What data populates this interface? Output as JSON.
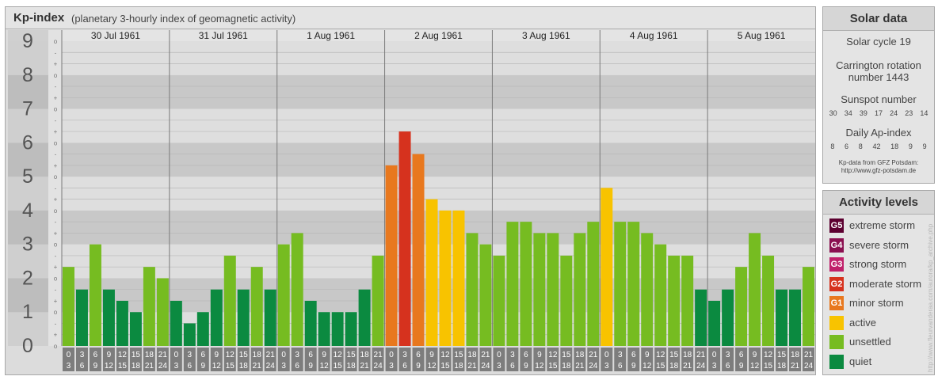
{
  "header": {
    "title": "Kp-index",
    "subtitle": "(planetary 3-hourly index of geomagnetic activity)"
  },
  "chart_data": {
    "type": "bar",
    "title": "Kp-index",
    "subtitle": "(planetary 3-hourly index of geomagnetic activity)",
    "ylim": [
      0,
      9
    ],
    "y_ticks": [
      "0",
      "1",
      "2",
      "3",
      "4",
      "5",
      "6",
      "7",
      "8",
      "9"
    ],
    "y_minor_labels": [
      "o",
      "+",
      "-"
    ],
    "days": [
      "30 Jul 1961",
      "31 Jul 1961",
      "1 Aug 1961",
      "2 Aug 1961",
      "3 Aug 1961",
      "4 Aug 1961",
      "5 Aug 1961"
    ],
    "interval_labels": [
      [
        "0",
        "3"
      ],
      [
        "3",
        "6"
      ],
      [
        "6",
        "9"
      ],
      [
        "9",
        "12"
      ],
      [
        "12",
        "15"
      ],
      [
        "15",
        "18"
      ],
      [
        "18",
        "21"
      ],
      [
        "21",
        "24"
      ]
    ],
    "values": [
      [
        2.333,
        1.667,
        3.0,
        1.667,
        1.333,
        1.0,
        2.333,
        2.0
      ],
      [
        1.333,
        0.667,
        1.0,
        1.667,
        2.667,
        1.667,
        2.333,
        1.667
      ],
      [
        3.0,
        3.333,
        1.333,
        1.0,
        1.0,
        1.0,
        1.667,
        2.667
      ],
      [
        5.333,
        6.333,
        5.667,
        4.333,
        4.0,
        4.0,
        3.333,
        3.0
      ],
      [
        2.667,
        3.667,
        3.667,
        3.333,
        3.333,
        2.667,
        3.333,
        3.667
      ],
      [
        4.667,
        3.667,
        3.667,
        3.333,
        3.0,
        2.667,
        2.667,
        1.667
      ],
      [
        1.333,
        1.667,
        2.333,
        3.333,
        2.667,
        1.667,
        1.667,
        2.333
      ]
    ],
    "level_colors": {
      "quiet": "#0b8a40",
      "unsettled": "#76bc21",
      "active": "#f8c300",
      "G1": "#e8781e",
      "G2": "#d6321e",
      "G3": "#c0206a",
      "G4": "#8a1050",
      "G5": "#5c0030"
    },
    "grid": true
  },
  "solar": {
    "heading": "Solar data",
    "cycle": "Solar cycle 19",
    "carrington_line1": "Carrington rotation",
    "carrington_line2": "number 1443",
    "sunspot_label": "Sunspot number",
    "sunspot_values": [
      "30",
      "34",
      "39",
      "17",
      "24",
      "23",
      "14"
    ],
    "ap_label": "Daily Ap-index",
    "ap_values": [
      "8",
      "6",
      "8",
      "42",
      "18",
      "9",
      "9"
    ],
    "source_line1": "Kp-data from GFZ Potsdam:",
    "source_line2": "http://www.gfz-potsdam.de"
  },
  "activity": {
    "heading": "Activity levels",
    "levels": [
      {
        "code": "G5",
        "label": "extreme storm",
        "color": "#5c0030"
      },
      {
        "code": "G4",
        "label": "severe storm",
        "color": "#8a1050"
      },
      {
        "code": "G3",
        "label": "strong storm",
        "color": "#c0206a"
      },
      {
        "code": "G2",
        "label": "moderate storm",
        "color": "#d6321e"
      },
      {
        "code": "G1",
        "label": "minor storm",
        "color": "#e8781e"
      },
      {
        "code": "",
        "label": "active",
        "color": "#f8c300"
      },
      {
        "code": "",
        "label": "unsettled",
        "color": "#76bc21"
      },
      {
        "code": "",
        "label": "quiet",
        "color": "#0b8a40"
      }
    ]
  },
  "credit": "http://www.fleurvanderaa.com/aurora/kp_archive.php"
}
